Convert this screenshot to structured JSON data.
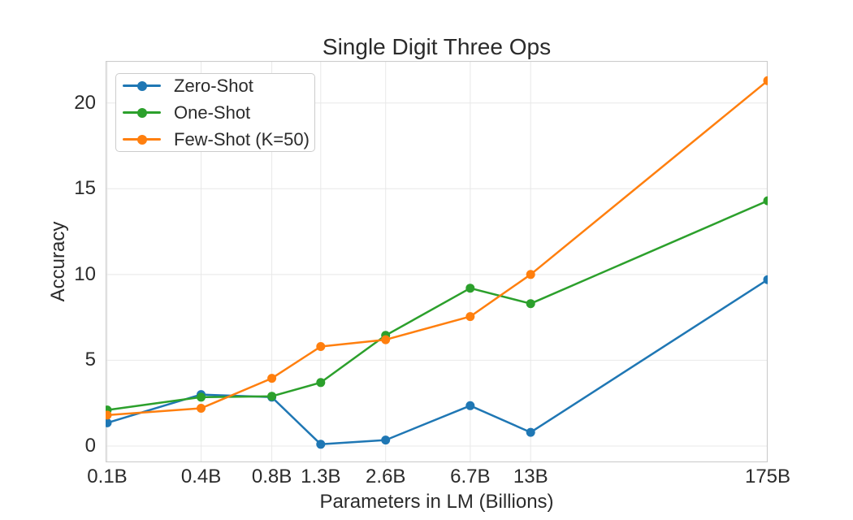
{
  "chart_data": {
    "type": "line",
    "title": "Single Digit Three Ops",
    "xlabel": "Parameters in LM (Billions)",
    "ylabel": "Accuracy",
    "x_scale": "log",
    "x_values": [
      0.125,
      0.35,
      0.76,
      1.3,
      2.65,
      6.7,
      13,
      175
    ],
    "x_tick_labels": [
      "0.1B",
      "0.4B",
      "0.8B",
      "1.3B",
      "2.6B",
      "6.7B",
      "13B",
      "175B"
    ],
    "y_ticks": [
      0,
      5,
      10,
      15,
      20
    ],
    "xlim": [
      0.1228,
      175
    ],
    "ylim": [
      -0.95,
      22.45
    ],
    "grid": true,
    "legend_position": "upper-left",
    "series": [
      {
        "name": "Zero-Shot",
        "color": "#1f77b4",
        "values": [
          1.35,
          3.0,
          2.85,
          0.1,
          0.35,
          2.35,
          0.8,
          9.7
        ]
      },
      {
        "name": "One-Shot",
        "color": "#2ca02c",
        "values": [
          2.1,
          2.85,
          2.9,
          3.7,
          6.45,
          9.2,
          8.3,
          14.3
        ]
      },
      {
        "name": "Few-Shot (K=50)",
        "color": "#ff7f0e",
        "values": [
          1.8,
          2.2,
          3.95,
          5.8,
          6.2,
          7.55,
          10.0,
          21.3
        ]
      }
    ],
    "styles": {
      "grid_color": "#e8e8e8",
      "spine_color": "#cccccc",
      "text_color": "#2b2b2b",
      "line_width": 2.5,
      "marker_radius": 5.5
    }
  }
}
